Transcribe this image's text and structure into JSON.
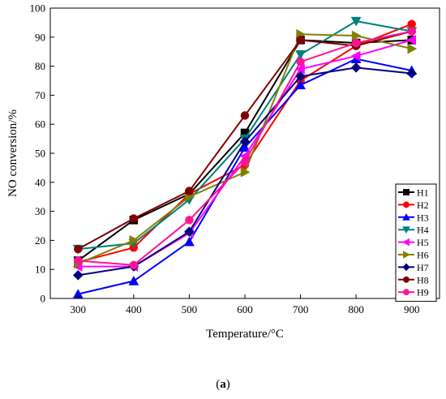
{
  "figure": {
    "caption_open": "(",
    "caption_letter": "a",
    "caption_close": ")"
  },
  "chart_data": {
    "type": "line",
    "xlabel": "Temperature/°C",
    "ylabel": "NO conversion/%",
    "x": [
      300,
      400,
      500,
      600,
      700,
      800,
      900
    ],
    "xlim": [
      250,
      950
    ],
    "ylim": [
      0,
      100
    ],
    "xticks": [
      300,
      400,
      500,
      600,
      700,
      800,
      900
    ],
    "yticks": [
      0,
      10,
      20,
      30,
      40,
      50,
      60,
      70,
      80,
      90,
      100
    ],
    "grid": false,
    "legend_position": "bottom-right",
    "series": [
      {
        "name": "H1",
        "color": "#000000",
        "marker": "square",
        "values": [
          13,
          27,
          36,
          57,
          89,
          88,
          89
        ]
      },
      {
        "name": "H2",
        "color": "#ff0000",
        "marker": "circle",
        "values": [
          12.5,
          17.5,
          36,
          46,
          75,
          87,
          94.5
        ]
      },
      {
        "name": "H3",
        "color": "#0000ff",
        "marker": "triangle-up",
        "values": [
          1.5,
          6,
          19.5,
          52,
          73.5,
          82.5,
          78.5
        ]
      },
      {
        "name": "H4",
        "color": "#008080",
        "marker": "triangle-down",
        "values": [
          17,
          19,
          34,
          55,
          84,
          95.5,
          92
        ]
      },
      {
        "name": "H5",
        "color": "#ff00ff",
        "marker": "triangle-left",
        "values": [
          11,
          11,
          22.5,
          49,
          79,
          83.5,
          89
        ]
      },
      {
        "name": "H6",
        "color": "#808000",
        "marker": "triangle-right",
        "values": [
          12,
          20,
          35,
          43.5,
          91,
          90.5,
          86
        ]
      },
      {
        "name": "H7",
        "color": "#000080",
        "marker": "diamond",
        "values": [
          8,
          11,
          23,
          54,
          76.5,
          79.5,
          77.5
        ]
      },
      {
        "name": "H8",
        "color": "#800000",
        "marker": "circle",
        "values": [
          17,
          27.5,
          37,
          63,
          89,
          87,
          92
        ]
      },
      {
        "name": "H9",
        "color": "#ff1493",
        "marker": "circle",
        "values": [
          13,
          11.5,
          27,
          47,
          81.5,
          88,
          92
        ]
      }
    ]
  }
}
